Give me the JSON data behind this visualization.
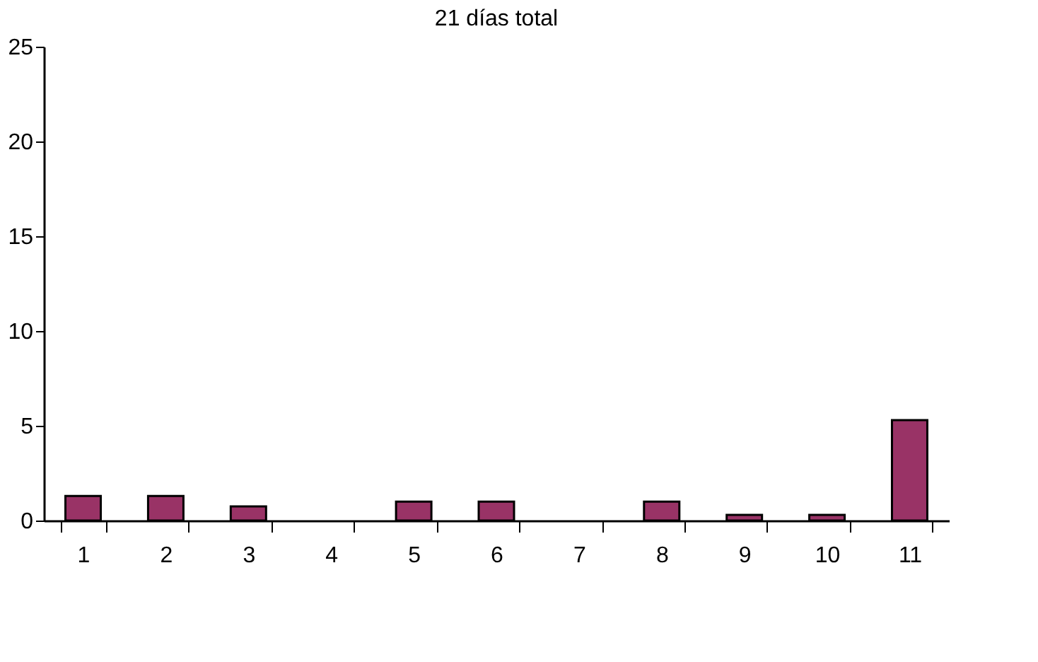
{
  "chart_data": {
    "type": "bar",
    "title": "21 días total",
    "categories": [
      "1",
      "2",
      "3",
      "4",
      "5",
      "6",
      "7",
      "8",
      "9",
      "10",
      "11"
    ],
    "values": [
      1.3,
      1.3,
      0.75,
      0,
      1.0,
      1.0,
      0,
      1.0,
      0.3,
      0.3,
      5.3
    ],
    "color": "#993366",
    "ylim": [
      0,
      25
    ],
    "yticks": [
      0,
      5,
      10,
      15,
      20,
      25
    ],
    "grid": false
  }
}
